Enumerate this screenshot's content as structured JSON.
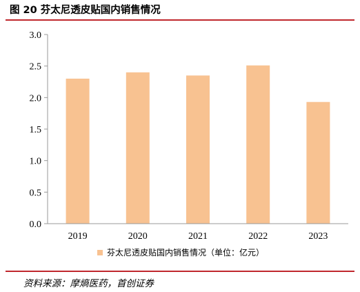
{
  "figure_title": "图 20  芬太尼透皮贴国内销售情况",
  "source_note": "资料来源：摩熵医药，首创证券",
  "colors": {
    "bar": "#f8c291",
    "axis": "#999999",
    "rule": "#c0272d"
  },
  "chart_data": {
    "type": "bar",
    "categories": [
      "2019",
      "2020",
      "2021",
      "2022",
      "2023"
    ],
    "series": [
      {
        "name": "芬太尼透皮贴国内销售情况（单位：亿元）",
        "values": [
          2.3,
          2.4,
          2.35,
          2.51,
          1.93
        ]
      }
    ],
    "ylim": [
      0,
      3.0
    ],
    "yticks": [
      "0.0",
      "0.5",
      "1.0",
      "1.5",
      "2.0",
      "2.5",
      "3.0"
    ],
    "grid": false,
    "legend_position": "bottom"
  }
}
